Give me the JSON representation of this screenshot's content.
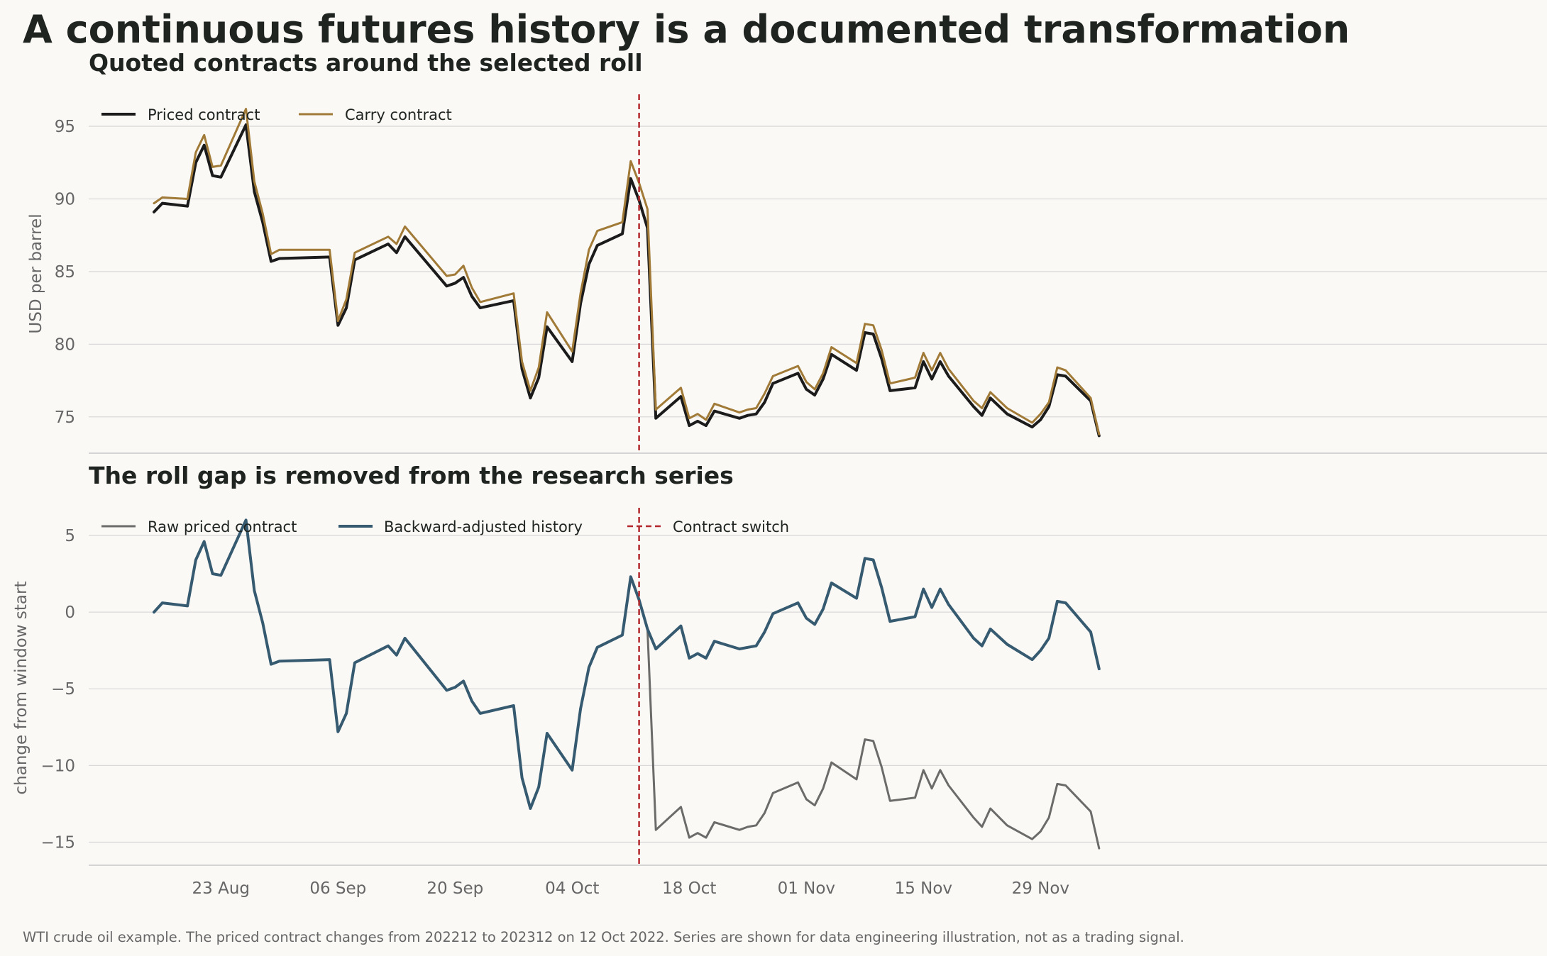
{
  "figure": {
    "title": "A continuous futures history is a documented transformation",
    "footnote": "WTI crude oil example. The priced contract changes from 202212 to 202312 on 12 Oct 2022. Series are shown for data engineering illustration, not as a trading signal."
  },
  "colors": {
    "background": "#faf9f6",
    "text": "#1f2421",
    "muted_text": "#666666",
    "grid": "#d9d9d9",
    "priced": "#1b1b1b",
    "carry": "#a07a36",
    "raw": "#6b6b69",
    "adjusted": "#365a70",
    "switch": "#b3282d"
  },
  "chart_data": [
    {
      "type": "line",
      "title": "Quoted contracts around the selected roll",
      "xlabel": "",
      "ylabel": "USD per barrel",
      "ylim": [
        72.5,
        97.2
      ],
      "yticks": [
        75,
        80,
        85,
        90,
        95
      ],
      "x_tick_labels": [
        "23 Aug",
        "06 Sep",
        "20 Sep",
        "04 Oct",
        "18 Oct",
        "01 Nov",
        "15 Nov",
        "29 Nov"
      ],
      "grid": "horizontal",
      "legend": "top-left",
      "switch_date": "2022-10-12",
      "x": [
        "2022-08-15",
        "2022-08-16",
        "2022-08-19",
        "2022-08-20",
        "2022-08-21",
        "2022-08-22",
        "2022-08-23",
        "2022-08-26",
        "2022-08-27",
        "2022-08-28",
        "2022-08-29",
        "2022-08-30",
        "2022-09-05",
        "2022-09-06",
        "2022-09-07",
        "2022-09-08",
        "2022-09-12",
        "2022-09-13",
        "2022-09-14",
        "2022-09-19",
        "2022-09-20",
        "2022-09-21",
        "2022-09-22",
        "2022-09-23",
        "2022-09-27",
        "2022-09-28",
        "2022-09-29",
        "2022-09-30",
        "2022-10-01",
        "2022-10-04",
        "2022-10-05",
        "2022-10-06",
        "2022-10-07",
        "2022-10-10",
        "2022-10-11",
        "2022-10-12",
        "2022-10-13",
        "2022-10-14",
        "2022-10-17",
        "2022-10-18",
        "2022-10-19",
        "2022-10-20",
        "2022-10-21",
        "2022-10-24",
        "2022-10-25",
        "2022-10-26",
        "2022-10-27",
        "2022-10-28",
        "2022-10-31",
        "2022-11-01",
        "2022-11-02",
        "2022-11-03",
        "2022-11-04",
        "2022-11-07",
        "2022-11-08",
        "2022-11-09",
        "2022-11-10",
        "2022-11-11",
        "2022-11-14",
        "2022-11-15",
        "2022-11-16",
        "2022-11-17",
        "2022-11-18",
        "2022-11-21",
        "2022-11-22",
        "2022-11-23",
        "2022-11-25",
        "2022-11-28",
        "2022-11-29",
        "2022-11-30",
        "2022-12-01",
        "2022-12-02",
        "2022-12-05",
        "2022-12-06"
      ],
      "series": [
        {
          "name": "Priced contract",
          "values": [
            89.1,
            89.7,
            89.5,
            92.5,
            93.7,
            91.6,
            91.5,
            95.1,
            90.5,
            88.4,
            85.7,
            85.9,
            86.0,
            81.3,
            82.5,
            85.8,
            86.9,
            86.3,
            87.4,
            84.0,
            84.2,
            84.6,
            83.3,
            82.5,
            83.0,
            78.3,
            76.3,
            77.7,
            81.2,
            78.8,
            82.8,
            85.5,
            86.8,
            87.6,
            91.4,
            89.9,
            88.0,
            74.9,
            76.4,
            74.4,
            74.7,
            74.4,
            75.4,
            74.9,
            75.1,
            75.2,
            76.0,
            77.3,
            78.0,
            76.9,
            76.5,
            77.6,
            79.3,
            78.2,
            80.8,
            80.7,
            79.0,
            76.8,
            77.0,
            78.8,
            77.6,
            78.8,
            77.8,
            75.7,
            75.1,
            76.3,
            75.2,
            74.3,
            74.8,
            75.7,
            77.9,
            77.8,
            76.1,
            73.7
          ]
        },
        {
          "name": "Carry contract",
          "values": [
            89.7,
            90.1,
            90.0,
            93.2,
            94.4,
            92.2,
            92.3,
            96.2,
            91.2,
            89.0,
            86.2,
            86.5,
            86.5,
            81.6,
            83.1,
            86.3,
            87.4,
            86.9,
            88.1,
            84.7,
            84.8,
            85.4,
            83.9,
            82.9,
            83.5,
            78.8,
            76.8,
            78.4,
            82.2,
            79.5,
            83.5,
            86.5,
            87.8,
            88.4,
            92.6,
            91.1,
            89.3,
            75.5,
            77.0,
            74.9,
            75.2,
            74.8,
            75.9,
            75.3,
            75.5,
            75.6,
            76.6,
            77.8,
            78.5,
            77.4,
            76.9,
            78.0,
            79.8,
            78.7,
            81.4,
            81.3,
            79.6,
            77.3,
            77.7,
            79.4,
            78.2,
            79.4,
            78.3,
            76.1,
            75.6,
            76.7,
            75.6,
            74.6,
            75.2,
            76.0,
            78.4,
            78.2,
            76.3,
            73.8
          ]
        }
      ]
    },
    {
      "type": "line",
      "title": "The roll gap is removed from the research series",
      "xlabel": "",
      "ylabel": "change from window start",
      "ylim": [
        -16.5,
        6.8
      ],
      "yticks": [
        5,
        0,
        -5,
        -10,
        -15
      ],
      "x_tick_labels": [
        "23 Aug",
        "06 Sep",
        "20 Sep",
        "04 Oct",
        "18 Oct",
        "01 Nov",
        "15 Nov",
        "29 Nov"
      ],
      "grid": "horizontal",
      "legend": "top-left",
      "switch_date": "2022-10-12",
      "switch_label": "Contract switch",
      "series": [
        {
          "name": "Raw priced contract",
          "values": [
            0.0,
            0.6,
            0.4,
            3.4,
            4.6,
            2.5,
            2.4,
            6.0,
            1.4,
            -0.7,
            -3.4,
            -3.2,
            -3.1,
            -7.8,
            -6.6,
            -3.3,
            -2.2,
            -2.8,
            -1.7,
            -5.1,
            -4.9,
            -4.5,
            -5.8,
            -6.6,
            -6.1,
            -10.8,
            -12.8,
            -11.4,
            -7.9,
            -10.3,
            -6.3,
            -3.6,
            -2.3,
            -1.5,
            2.3,
            0.8,
            -1.1,
            -14.2,
            -12.7,
            -14.7,
            -14.4,
            -14.7,
            -13.7,
            -14.2,
            -14.0,
            -13.9,
            -13.1,
            -11.8,
            -11.1,
            -12.2,
            -12.6,
            -11.5,
            -9.8,
            -10.9,
            -8.3,
            -8.4,
            -10.1,
            -12.3,
            -12.1,
            -10.3,
            -11.5,
            -10.3,
            -11.3,
            -13.4,
            -14.0,
            -12.8,
            -13.9,
            -14.8,
            -14.3,
            -13.4,
            -11.2,
            -11.3,
            -13.0,
            -15.4
          ]
        },
        {
          "name": "Backward-adjusted history",
          "values": [
            0.0,
            0.6,
            0.4,
            3.4,
            4.6,
            2.5,
            2.4,
            6.0,
            1.4,
            -0.7,
            -3.4,
            -3.2,
            -3.1,
            -7.8,
            -6.6,
            -3.3,
            -2.2,
            -2.8,
            -1.7,
            -5.1,
            -4.9,
            -4.5,
            -5.8,
            -6.6,
            -6.1,
            -10.8,
            -12.8,
            -11.4,
            -7.9,
            -10.3,
            -6.3,
            -3.6,
            -2.3,
            -1.5,
            2.3,
            0.8,
            -1.1,
            -2.4,
            -0.9,
            -3.0,
            -2.7,
            -3.0,
            -1.9,
            -2.4,
            -2.3,
            -2.2,
            -1.3,
            -0.1,
            0.6,
            -0.4,
            -0.8,
            0.2,
            1.9,
            0.9,
            3.5,
            3.4,
            1.6,
            -0.6,
            -0.3,
            1.5,
            0.3,
            1.5,
            0.5,
            -1.7,
            -2.2,
            -1.1,
            -2.1,
            -3.1,
            -2.5,
            -1.7,
            0.7,
            0.6,
            -1.3,
            -3.7
          ]
        }
      ]
    }
  ]
}
